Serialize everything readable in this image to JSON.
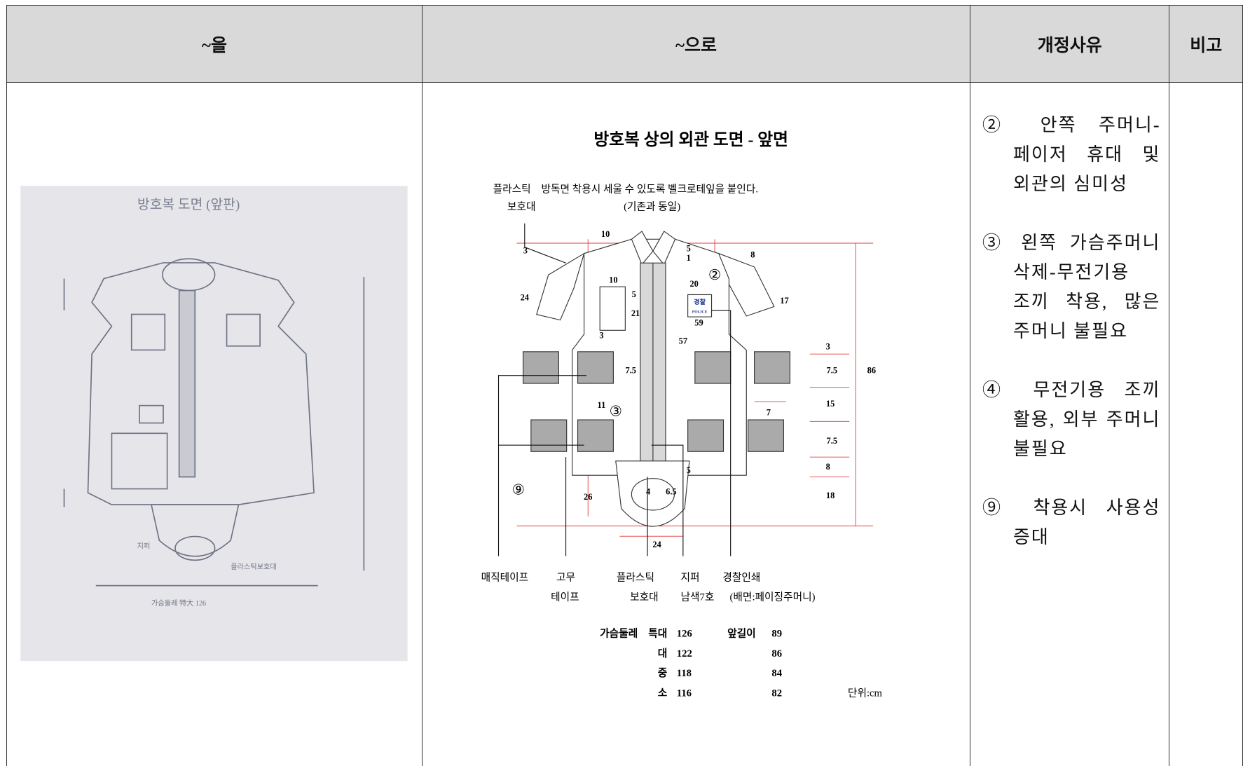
{
  "table": {
    "headers": [
      "~을",
      "~으로",
      "개정사유",
      "비고"
    ],
    "old": {
      "title": "방호복 도면 (앞판)",
      "labels": [
        "지퍼",
        "플라스틱보호대",
        "가슴둘레 特大 126"
      ]
    },
    "new": {
      "title": "방호복 상의 외관 도면 - 앞면",
      "top_notes": [
        "플라스틱",
        "보호대",
        "방독면 착용시 세울 수 있도록 벨크로테잎을 붙인다.",
        "(기존과 동일)"
      ],
      "badge": [
        "경찰",
        "POLICE"
      ],
      "markers": [
        "②",
        "③",
        "⑨"
      ],
      "dimensions": [
        "10",
        "3",
        "24",
        "10",
        "5",
        "21",
        "3",
        "7.5",
        "11",
        "26",
        "4",
        "6.5",
        "24",
        "5",
        "57",
        "20",
        "59",
        "5",
        "1",
        "8",
        "17",
        "3",
        "7.5",
        "86",
        "15",
        "7",
        "7.5",
        "8",
        "18"
      ],
      "bottom_notes": [
        "매직테이프",
        "고무",
        "테이프",
        "플라스틱",
        "보호대",
        "지퍼",
        "남색7호",
        "경찰인쇄",
        "(배면:페이징주머니)"
      ],
      "size_table": {
        "headers": [
          "가슴둘레",
          "앞길이"
        ],
        "rows": [
          [
            "특대",
            "126",
            "89"
          ],
          [
            "대",
            "122",
            "86"
          ],
          [
            "중",
            "118",
            "84"
          ],
          [
            "소",
            "116",
            "82"
          ]
        ],
        "unit": "단위:cm"
      }
    },
    "reasons": [
      "② 안쪽 주머니-페이저 휴대 및 외관의 심미성",
      "③ 왼쪽 가슴주머니 삭제-무전기용 조끼 착용, 많은 주머니 불필요",
      "④ 무전기용 조끼 활용, 외부 주머니 불필요",
      "⑨ 착용시 사용성 증대"
    ]
  }
}
